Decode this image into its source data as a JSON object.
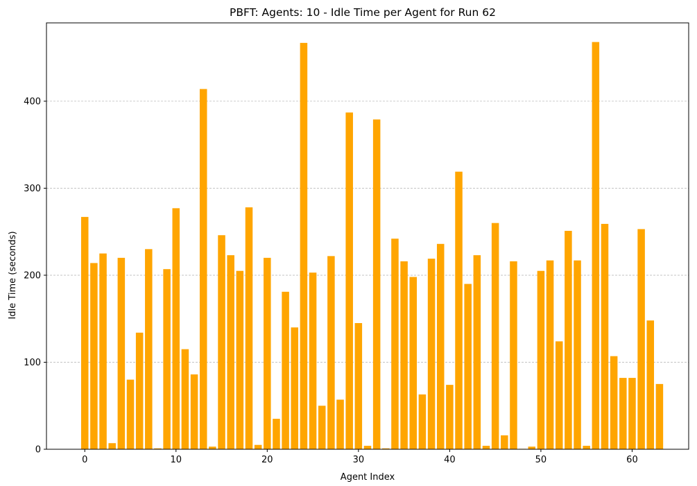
{
  "chart_data": {
    "type": "bar",
    "title": "PBFT: Agents: 10 - Idle Time per Agent for Run 62",
    "xlabel": "Agent Index",
    "ylabel": "Idle Time (seconds)",
    "xlim": [
      -4.2,
      66.2
    ],
    "ylim": [
      0,
      490
    ],
    "xticks": [
      0,
      10,
      20,
      30,
      40,
      50,
      60
    ],
    "yticks": [
      0,
      100,
      200,
      300,
      400
    ],
    "grid": "y-axis dashed",
    "bar_color": "#ffa500",
    "grid_color": "#b0b0b0",
    "categories": [
      0,
      1,
      2,
      3,
      4,
      5,
      6,
      7,
      8,
      9,
      10,
      11,
      12,
      13,
      14,
      15,
      16,
      17,
      18,
      19,
      20,
      21,
      22,
      23,
      24,
      25,
      26,
      27,
      28,
      29,
      30,
      31,
      32,
      33,
      34,
      35,
      36,
      37,
      38,
      39,
      40,
      41,
      42,
      43,
      44,
      45,
      46,
      47,
      48,
      49,
      50,
      51,
      52,
      53,
      54,
      55,
      56,
      57,
      58,
      59,
      60,
      61,
      62,
      63
    ],
    "values": [
      267,
      214,
      225,
      7,
      220,
      80,
      134,
      230,
      1,
      207,
      277,
      115,
      86,
      414,
      3,
      246,
      223,
      205,
      278,
      5,
      220,
      35,
      181,
      140,
      467,
      203,
      50,
      222,
      57,
      387,
      145,
      4,
      379,
      1,
      242,
      216,
      198,
      63,
      219,
      236,
      74,
      319,
      190,
      223,
      4,
      260,
      16,
      216,
      0.5,
      3,
      205,
      217,
      124,
      251,
      217,
      4,
      468,
      259,
      107,
      82,
      82,
      253,
      148,
      75
    ]
  }
}
